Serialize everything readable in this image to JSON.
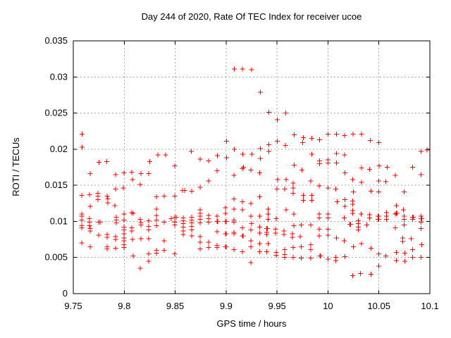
{
  "chart_data": {
    "type": "scatter",
    "title": "Day 244 of 2020, Rate Of TEC Index for receiver ucoe",
    "xlabel": "GPS time / hours",
    "ylabel": "ROTI / TECUs",
    "xlim": [
      9.75,
      10.1
    ],
    "ylim": [
      0,
      0.035
    ],
    "xticks": [
      9.75,
      9.8,
      9.85,
      9.9,
      9.95,
      10,
      10.05,
      10.1
    ],
    "xtick_labels": [
      "9.75",
      "9.8",
      "9.85",
      "9.9",
      "9.95",
      "10",
      "10.05",
      "10.1"
    ],
    "yticks": [
      0,
      0.005,
      0.01,
      0.015,
      0.02,
      0.025,
      0.03,
      0.035
    ],
    "ytick_labels": [
      "0",
      "0.005",
      "0.01",
      "0.015",
      "0.02",
      "0.025",
      "0.03",
      "0.035"
    ],
    "grid": true,
    "legend": "none",
    "marker": "plus",
    "marker_color": "#ff0000",
    "grid_color": "#a6a6a6",
    "axis_color": "#000000",
    "background_color": "#ffffff",
    "points": [
      [
        9.7585,
        0.0221
      ],
      [
        9.7585,
        0.0203
      ],
      [
        9.7754,
        0.0182
      ],
      [
        9.783,
        0.0183
      ],
      [
        9.825,
        0.0183
      ],
      [
        9.833,
        0.0192
      ],
      [
        9.8406,
        0.0192
      ],
      [
        9.8496,
        0.0177
      ],
      [
        9.866,
        0.0197
      ],
      [
        9.908,
        0.0311
      ],
      [
        9.916,
        0.0311
      ],
      [
        9.925,
        0.031
      ],
      [
        9.9338,
        0.0279
      ],
      [
        9.9418,
        0.0251
      ],
      [
        9.9584,
        0.025
      ],
      [
        9.9504,
        0.0241
      ],
      [
        9.9667,
        0.022
      ],
      [
        9.9757,
        0.0216
      ],
      [
        9.984,
        0.0215
      ],
      [
        9.9753,
        0.0209
      ],
      [
        9.9004,
        0.0211
      ],
      [
        9.9504,
        0.0211
      ],
      [
        9.9582,
        0.0205
      ],
      [
        9.9418,
        0.0206
      ],
      [
        9.9418,
        0.0197
      ],
      [
        9.9335,
        0.0201
      ],
      [
        9.908,
        0.02
      ],
      [
        9.8745,
        0.0186
      ],
      [
        9.8828,
        0.0184
      ],
      [
        9.8913,
        0.0191
      ],
      [
        9.9004,
        0.0188
      ],
      [
        9.9165,
        0.0193
      ],
      [
        9.9253,
        0.0193
      ],
      [
        9.9338,
        0.0187
      ],
      [
        9.984,
        0.0193
      ],
      [
        9.9667,
        0.0178
      ],
      [
        9.9172,
        0.0175
      ],
      [
        9.9916,
        0.0213
      ],
      [
        10.0,
        0.0221
      ],
      [
        10.0083,
        0.0221
      ],
      [
        10.0164,
        0.0219
      ],
      [
        10.0247,
        0.0221
      ],
      [
        10.033,
        0.0221
      ],
      [
        10.0415,
        0.0212
      ],
      [
        10.0498,
        0.0209
      ],
      [
        10.0913,
        0.0197
      ],
      [
        10.0974,
        0.0199
      ],
      [
        10.0083,
        0.0194
      ],
      [
        10.0164,
        0.0192
      ],
      [
        9.9916,
        0.0184
      ],
      [
        10.0,
        0.0185
      ],
      [
        10.0,
        0.0181
      ],
      [
        9.9916,
        0.018
      ],
      [
        10.0083,
        0.0181
      ],
      [
        9.7666,
        0.0166
      ],
      [
        9.7915,
        0.0165
      ],
      [
        9.7998,
        0.0167
      ],
      [
        9.8074,
        0.0168
      ],
      [
        9.8081,
        0.0158
      ],
      [
        9.8164,
        0.0166
      ],
      [
        9.824,
        0.0166
      ],
      [
        9.8157,
        0.0151
      ],
      [
        9.7915,
        0.0145
      ],
      [
        9.7991,
        0.0146
      ],
      [
        9.7583,
        0.0136
      ],
      [
        9.7659,
        0.0137
      ],
      [
        9.7742,
        0.0139
      ],
      [
        9.7742,
        0.0135
      ],
      [
        9.7742,
        0.013
      ],
      [
        9.7832,
        0.0135
      ],
      [
        9.7839,
        0.0131
      ],
      [
        9.7839,
        0.0126
      ],
      [
        9.7666,
        0.0121
      ],
      [
        9.8317,
        0.0134
      ],
      [
        9.7908,
        0.0122
      ],
      [
        9.8317,
        0.0117
      ],
      [
        9.8317,
        0.0108
      ],
      [
        9.7583,
        0.011
      ],
      [
        9.7583,
        0.0107
      ],
      [
        9.7583,
        0.0102
      ],
      [
        9.7659,
        0.0104
      ],
      [
        9.7659,
        0.0099
      ],
      [
        9.7659,
        0.0094
      ],
      [
        9.7749,
        0.0099
      ],
      [
        9.7763,
        0.0099
      ],
      [
        9.7583,
        0.0094
      ],
      [
        9.7583,
        0.0091
      ],
      [
        9.7666,
        0.009
      ],
      [
        9.7666,
        0.0087
      ],
      [
        9.7922,
        0.0106
      ],
      [
        9.7922,
        0.0102
      ],
      [
        9.7922,
        0.0098
      ],
      [
        9.7998,
        0.011
      ],
      [
        9.7998,
        0.0102
      ],
      [
        9.8074,
        0.0112
      ],
      [
        9.8088,
        0.0111
      ],
      [
        9.8074,
        0.0091
      ],
      [
        9.8074,
        0.0087
      ],
      [
        9.7998,
        0.0092
      ],
      [
        9.7998,
        0.0088
      ],
      [
        9.7998,
        0.0083
      ],
      [
        9.7749,
        0.0081
      ],
      [
        9.7832,
        0.0082
      ],
      [
        9.7832,
        0.0078
      ],
      [
        9.7915,
        0.0079
      ],
      [
        9.7915,
        0.0075
      ],
      [
        9.7998,
        0.0077
      ],
      [
        9.7998,
        0.0073
      ],
      [
        9.7998,
        0.0068
      ],
      [
        9.7998,
        0.0064
      ],
      [
        9.7583,
        0.007
      ],
      [
        9.7666,
        0.0065
      ],
      [
        9.7832,
        0.0065
      ],
      [
        9.7832,
        0.0062
      ],
      [
        9.7915,
        0.0063
      ],
      [
        9.8081,
        0.0075
      ],
      [
        9.8164,
        0.0076
      ],
      [
        9.824,
        0.0076
      ],
      [
        9.8164,
        0.0098
      ],
      [
        9.8157,
        0.0103
      ],
      [
        9.8164,
        0.0095
      ],
      [
        9.824,
        0.0101
      ],
      [
        9.824,
        0.0093
      ],
      [
        9.824,
        0.0088
      ],
      [
        9.8317,
        0.0102
      ],
      [
        9.8317,
        0.0094
      ],
      [
        9.8088,
        0.0052
      ],
      [
        9.824,
        0.0055
      ],
      [
        9.824,
        0.0045
      ],
      [
        9.8157,
        0.0035
      ],
      [
        9.8317,
        0.006
      ],
      [
        9.8317,
        0.0056
      ],
      [
        9.8911,
        0.017
      ],
      [
        9.9077,
        0.0164
      ],
      [
        9.916,
        0.0173
      ],
      [
        9.9243,
        0.0171
      ],
      [
        9.8828,
        0.0156
      ],
      [
        9.8745,
        0.0147
      ],
      [
        9.8572,
        0.0143
      ],
      [
        9.8593,
        0.0143
      ],
      [
        9.8662,
        0.0142
      ],
      [
        9.8392,
        0.0135
      ],
      [
        9.8496,
        0.0135
      ],
      [
        9.9077,
        0.0131
      ],
      [
        9.916,
        0.0127
      ],
      [
        9.9243,
        0.0125
      ],
      [
        9.9077,
        0.0117
      ],
      [
        9.916,
        0.0116
      ],
      [
        9.8745,
        0.0116
      ],
      [
        9.8745,
        0.0111
      ],
      [
        9.8462,
        0.0104
      ],
      [
        9.8496,
        0.0106
      ],
      [
        9.851,
        0.0106
      ],
      [
        9.8496,
        0.0099
      ],
      [
        9.8496,
        0.0095
      ],
      [
        9.8392,
        0.0099
      ],
      [
        9.8579,
        0.0105
      ],
      [
        9.8579,
        0.0101
      ],
      [
        9.8579,
        0.0097
      ],
      [
        9.8579,
        0.0092
      ],
      [
        9.8579,
        0.0087
      ],
      [
        9.8579,
        0.0082
      ],
      [
        9.8662,
        0.0106
      ],
      [
        9.8662,
        0.0102
      ],
      [
        9.8662,
        0.0098
      ],
      [
        9.8662,
        0.0093
      ],
      [
        9.8662,
        0.0088
      ],
      [
        9.8662,
        0.008
      ],
      [
        9.8745,
        0.0107
      ],
      [
        9.8745,
        0.0103
      ],
      [
        9.8745,
        0.0098
      ],
      [
        9.8745,
        0.0079
      ],
      [
        9.8745,
        0.0071
      ],
      [
        9.8745,
        0.0062
      ],
      [
        9.8828,
        0.0108
      ],
      [
        9.8828,
        0.0104
      ],
      [
        9.8828,
        0.0099
      ],
      [
        9.8828,
        0.0071
      ],
      [
        9.8828,
        0.0064
      ],
      [
        9.8911,
        0.0107
      ],
      [
        9.8911,
        0.01
      ],
      [
        9.8918,
        0.01
      ],
      [
        9.8911,
        0.0086
      ],
      [
        9.8911,
        0.0067
      ],
      [
        9.8911,
        0.0064
      ],
      [
        9.8994,
        0.0119
      ],
      [
        9.8994,
        0.0111
      ],
      [
        9.8994,
        0.01
      ],
      [
        9.9001,
        0.01
      ],
      [
        9.8994,
        0.0083
      ],
      [
        9.9001,
        0.0083
      ],
      [
        9.8994,
        0.0065
      ],
      [
        9.9001,
        0.0065
      ],
      [
        9.9077,
        0.0102
      ],
      [
        9.9077,
        0.0099
      ],
      [
        9.9077,
        0.0085
      ],
      [
        9.9077,
        0.0083
      ],
      [
        9.9077,
        0.0061
      ],
      [
        9.916,
        0.0091
      ],
      [
        9.916,
        0.008
      ],
      [
        9.9167,
        0.008
      ],
      [
        9.916,
        0.0058
      ],
      [
        9.9243,
        0.0107
      ],
      [
        9.925,
        0.0097
      ],
      [
        9.9243,
        0.0088
      ],
      [
        9.9243,
        0.0073
      ],
      [
        9.9243,
        0.0065
      ],
      [
        9.9243,
        0.0043
      ],
      [
        9.8496,
        0.0055
      ],
      [
        9.8393,
        0.0073
      ],
      [
        9.8393,
        0.006
      ],
      [
        9.9331,
        0.0167
      ],
      [
        9.9743,
        0.0171
      ],
      [
        10.0166,
        0.0167
      ],
      [
        9.9506,
        0.0158
      ],
      [
        9.9589,
        0.0158
      ],
      [
        9.9831,
        0.0156
      ],
      [
        9.9658,
        0.0153
      ],
      [
        9.9914,
        0.0149
      ],
      [
        9.9499,
        0.0145
      ],
      [
        9.9575,
        0.0145
      ],
      [
        9.9658,
        0.0146
      ],
      [
        9.9658,
        0.0139
      ],
      [
        10.0,
        0.0146
      ],
      [
        10.0076,
        0.0145
      ],
      [
        9.9331,
        0.0134
      ],
      [
        9.9757,
        0.0136
      ],
      [
        9.9757,
        0.0129
      ],
      [
        9.984,
        0.0136
      ],
      [
        9.984,
        0.0129
      ],
      [
        10.009,
        0.0127
      ],
      [
        10.0166,
        0.013
      ],
      [
        10.0166,
        0.0121
      ],
      [
        9.9414,
        0.0117
      ],
      [
        9.9589,
        0.0116
      ],
      [
        9.9331,
        0.0107
      ],
      [
        9.9414,
        0.011
      ],
      [
        9.9414,
        0.0103
      ],
      [
        9.9492,
        0.0104
      ],
      [
        9.9665,
        0.011
      ],
      [
        9.9914,
        0.011
      ],
      [
        9.9914,
        0.0105
      ],
      [
        10.0,
        0.011
      ],
      [
        10.0,
        0.0105
      ],
      [
        10.0159,
        0.0105
      ],
      [
        9.9665,
        0.0094
      ],
      [
        9.9736,
        0.0095
      ],
      [
        9.9831,
        0.0095
      ],
      [
        9.9331,
        0.0092
      ],
      [
        9.9331,
        0.0084
      ],
      [
        9.94,
        0.009
      ],
      [
        9.9407,
        0.009
      ],
      [
        9.94,
        0.0085
      ],
      [
        9.94,
        0.0082
      ],
      [
        9.9485,
        0.0089
      ],
      [
        9.9485,
        0.0084
      ],
      [
        9.9568,
        0.0087
      ],
      [
        9.9568,
        0.0082
      ],
      [
        9.9651,
        0.0083
      ],
      [
        9.9651,
        0.0078
      ],
      [
        9.9729,
        0.0079
      ],
      [
        9.9914,
        0.0089
      ],
      [
        9.9914,
        0.008
      ],
      [
        10.0,
        0.0089
      ],
      [
        10.0,
        0.0081
      ],
      [
        10.0083,
        0.0077
      ],
      [
        10.0159,
        0.0073
      ],
      [
        9.9331,
        0.0069
      ],
      [
        9.9331,
        0.0058
      ],
      [
        9.94,
        0.0058
      ],
      [
        9.9414,
        0.0069
      ],
      [
        9.9492,
        0.0057
      ],
      [
        9.9492,
        0.0053
      ],
      [
        9.9575,
        0.0061
      ],
      [
        9.9575,
        0.0054
      ],
      [
        9.9575,
        0.005
      ],
      [
        9.9658,
        0.0064
      ],
      [
        9.9658,
        0.005
      ],
      [
        9.9736,
        0.0065
      ],
      [
        9.9736,
        0.0049
      ],
      [
        9.9831,
        0.0068
      ],
      [
        9.9831,
        0.0061
      ],
      [
        9.9831,
        0.0049
      ],
      [
        9.9921,
        0.0052
      ],
      [
        9.9928,
        0.0052
      ],
      [
        10.0,
        0.0048
      ],
      [
        10.0076,
        0.005
      ],
      [
        10.0076,
        0.0046
      ],
      [
        10.0166,
        0.0051
      ],
      [
        10.033,
        0.0174
      ],
      [
        10.0408,
        0.0172
      ],
      [
        10.0501,
        0.0177
      ],
      [
        10.058,
        0.0175
      ],
      [
        10.083,
        0.0175
      ],
      [
        10.066,
        0.0164
      ],
      [
        10.0913,
        0.0165
      ],
      [
        10.0242,
        0.0158
      ],
      [
        10.033,
        0.0154
      ],
      [
        10.05,
        0.0156
      ],
      [
        10.0568,
        0.0155
      ],
      [
        10.0249,
        0.0141
      ],
      [
        10.0422,
        0.0142
      ],
      [
        10.05,
        0.0141
      ],
      [
        10.0747,
        0.0141
      ],
      [
        10.0242,
        0.0128
      ],
      [
        10.0242,
        0.0124
      ],
      [
        10.0671,
        0.0122
      ],
      [
        10.074,
        0.0116
      ],
      [
        10.0242,
        0.0115
      ],
      [
        10.0242,
        0.0111
      ],
      [
        10.0325,
        0.011
      ],
      [
        10.0408,
        0.0109
      ],
      [
        10.0408,
        0.0105
      ],
      [
        10.0491,
        0.0107
      ],
      [
        10.0498,
        0.0107
      ],
      [
        10.0491,
        0.0103
      ],
      [
        10.0498,
        0.0103
      ],
      [
        10.0574,
        0.0112
      ],
      [
        10.0574,
        0.0107
      ],
      [
        10.0574,
        0.0103
      ],
      [
        10.0661,
        0.011
      ],
      [
        10.0671,
        0.0111
      ],
      [
        10.0678,
        0.0111
      ],
      [
        10.0661,
        0.0091
      ],
      [
        10.0747,
        0.0107
      ],
      [
        10.0747,
        0.0103
      ],
      [
        10.0747,
        0.0095
      ],
      [
        10.083,
        0.0106
      ],
      [
        10.0837,
        0.0106
      ],
      [
        10.083,
        0.0103
      ],
      [
        10.0913,
        0.0107
      ],
      [
        10.0913,
        0.0104
      ],
      [
        10.092,
        0.0104
      ],
      [
        10.0913,
        0.0099
      ],
      [
        10.0913,
        0.009
      ],
      [
        10.0215,
        0.0096
      ],
      [
        10.0222,
        0.0096
      ],
      [
        10.0297,
        0.0101
      ],
      [
        10.0297,
        0.0097
      ],
      [
        10.0297,
        0.0092
      ],
      [
        10.0297,
        0.0088
      ],
      [
        10.038,
        0.0095
      ],
      [
        10.0733,
        0.0077
      ],
      [
        10.0733,
        0.0072
      ],
      [
        10.0816,
        0.0076
      ],
      [
        10.092,
        0.0068
      ],
      [
        10.0249,
        0.0065
      ],
      [
        10.033,
        0.0069
      ],
      [
        10.0422,
        0.0063
      ],
      [
        10.05,
        0.0055
      ],
      [
        10.05,
        0.0038
      ],
      [
        10.0568,
        0.0052
      ],
      [
        10.0671,
        0.0057
      ],
      [
        10.0671,
        0.0046
      ],
      [
        10.0754,
        0.0056
      ],
      [
        10.0754,
        0.0045
      ],
      [
        10.083,
        0.0061
      ],
      [
        10.083,
        0.005
      ],
      [
        10.0913,
        0.005
      ],
      [
        10.0242,
        0.0025
      ],
      [
        10.0318,
        0.0028
      ],
      [
        10.0422,
        0.0027
      ]
    ]
  }
}
